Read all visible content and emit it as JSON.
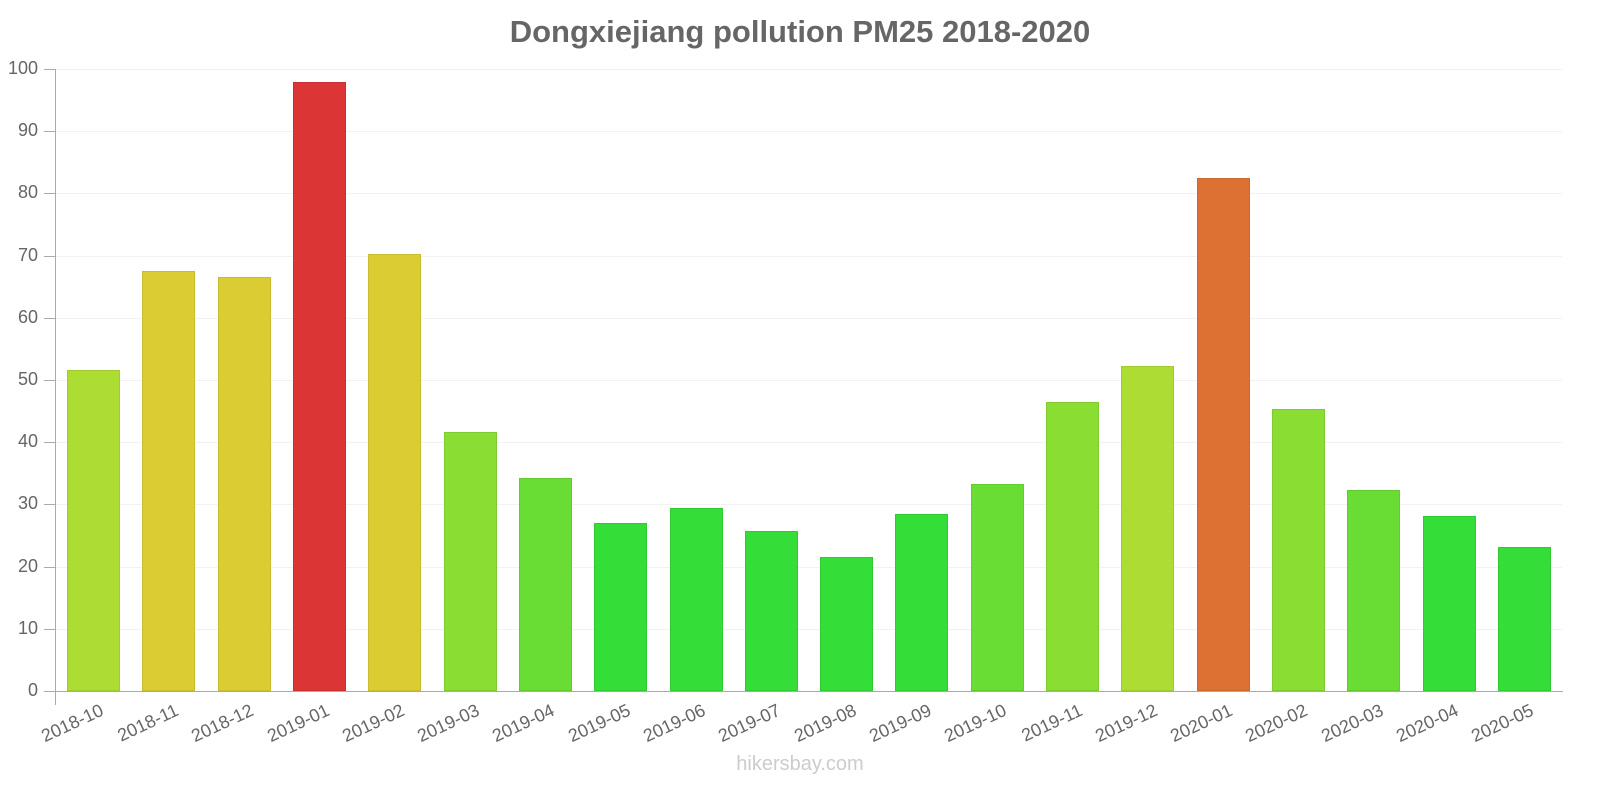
{
  "chart_data": {
    "type": "bar",
    "title": "Dongxiejiang pollution PM25 2018-2020",
    "xlabel": "",
    "ylabel": "",
    "ylim": [
      0,
      100
    ],
    "yticks": [
      0,
      10,
      20,
      30,
      40,
      50,
      60,
      70,
      80,
      90,
      100
    ],
    "grid": true,
    "legend": "none",
    "categories": [
      "2018-10",
      "2018-11",
      "2018-12",
      "2019-01",
      "2019-02",
      "2019-03",
      "2019-04",
      "2019-05",
      "2019-06",
      "2019-07",
      "2019-08",
      "2019-09",
      "2019-10",
      "2019-11",
      "2019-12",
      "2020-01",
      "2020-02",
      "2020-03",
      "2020-04",
      "2020-05"
    ],
    "values": [
      51.6,
      67.5,
      66.6,
      97.9,
      70.3,
      41.7,
      34.3,
      27.0,
      29.5,
      25.8,
      21.6,
      28.4,
      33.3,
      46.4,
      52.3,
      82.4,
      45.3,
      32.3,
      28.1,
      23.2
    ],
    "colors": [
      "#addd33",
      "#dbcc33",
      "#dbcc33",
      "#db3535",
      "#dbcc33",
      "#8add33",
      "#6add35",
      "#35dd38",
      "#35dd38",
      "#35dd38",
      "#35dd38",
      "#35dd38",
      "#6add35",
      "#8add33",
      "#addd33",
      "#dd7033",
      "#8add33",
      "#6add35",
      "#35dd38",
      "#35dd38"
    ]
  },
  "watermark": "hikersbay.com"
}
